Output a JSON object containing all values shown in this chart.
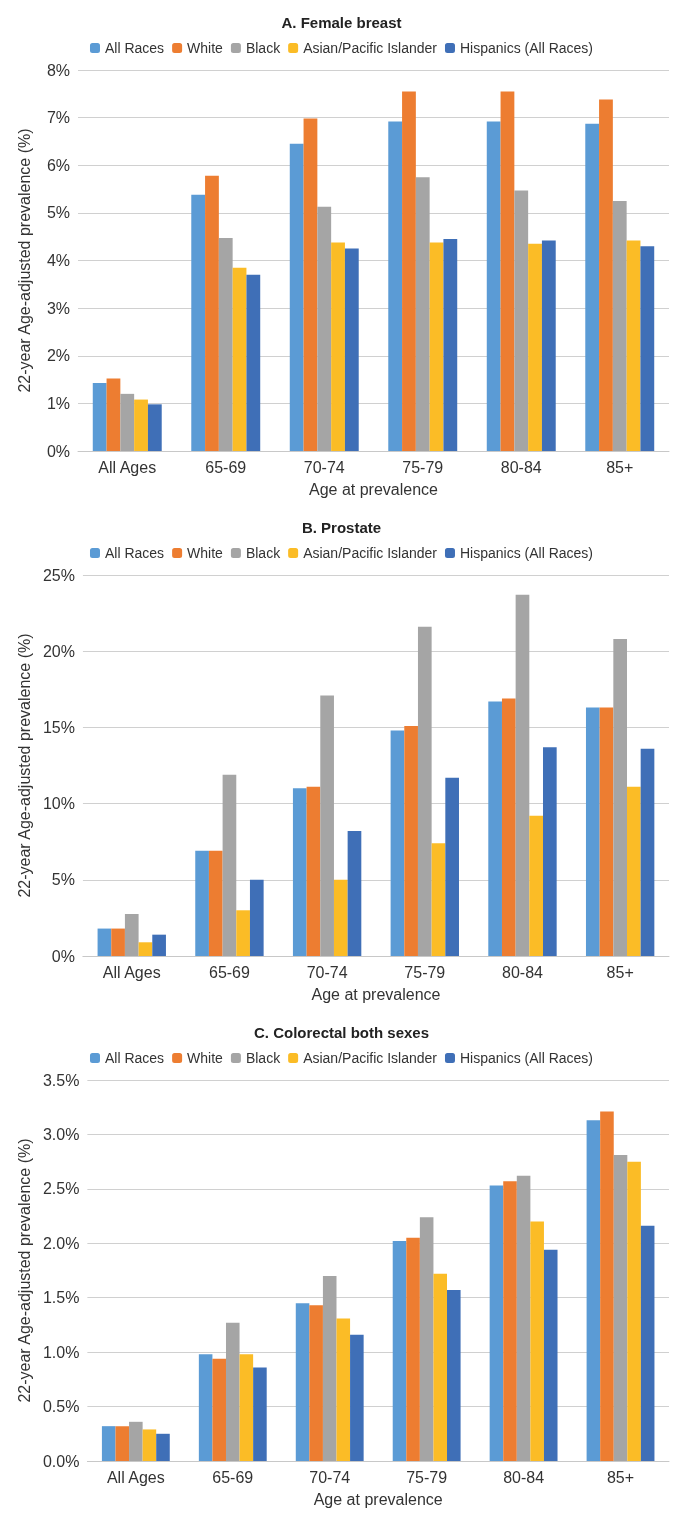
{
  "chart_data": [
    {
      "type": "bar",
      "title": "A. Female breast",
      "xlabel": "Age at prevalence",
      "ylabel": "22-year Age-adjusted prevalence (%)",
      "categories": [
        "All Ages",
        "65-69",
        "70-74",
        "75-79",
        "80-84",
        "85+"
      ],
      "series": [
        {
          "name": "All Races",
          "color": "#5b9bd5",
          "values": [
            1.43,
            5.38,
            6.45,
            6.92,
            6.92,
            6.87
          ]
        },
        {
          "name": "White",
          "color": "#ed7d31",
          "values": [
            1.52,
            5.78,
            6.98,
            7.55,
            7.55,
            7.38
          ]
        },
        {
          "name": "Black",
          "color": "#a5a5a5",
          "values": [
            1.2,
            4.47,
            5.13,
            5.75,
            5.47,
            5.25
          ]
        },
        {
          "name": "Asian/Pacific Islander",
          "color": "#fbbc26",
          "values": [
            1.08,
            3.85,
            4.38,
            4.38,
            4.35,
            4.42
          ]
        },
        {
          "name": "Hispanics (All Races)",
          "color": "#3f6fb7",
          "values": [
            0.98,
            3.7,
            4.25,
            4.45,
            4.42,
            4.3
          ]
        }
      ],
      "ylim": [
        0,
        8
      ],
      "yticks": [
        {
          "value": 0,
          "label": "0%"
        },
        {
          "value": 1,
          "label": "1%"
        },
        {
          "value": 2,
          "label": "2%"
        },
        {
          "value": 3,
          "label": "3%"
        },
        {
          "value": 4,
          "label": "4%"
        },
        {
          "value": 5,
          "label": "5%"
        },
        {
          "value": 6,
          "label": "6%"
        },
        {
          "value": 7,
          "label": "7%"
        },
        {
          "value": 8,
          "label": "8%"
        }
      ],
      "grid": "y",
      "legend": "top"
    },
    {
      "type": "bar",
      "title": "B. Prostate",
      "xlabel": "Age at prevalence",
      "ylabel": "22-year Age-adjusted prevalence (%)",
      "categories": [
        "All Ages",
        "65-69",
        "70-74",
        "75-79",
        "80-84",
        "85+"
      ],
      "series": [
        {
          "name": "All Races",
          "color": "#5b9bd5",
          "values": [
            1.8,
            6.9,
            11.0,
            14.8,
            16.7,
            16.3
          ]
        },
        {
          "name": "White",
          "color": "#ed7d31",
          "values": [
            1.8,
            6.9,
            11.1,
            15.1,
            16.9,
            16.3
          ]
        },
        {
          "name": "Black",
          "color": "#a5a5a5",
          "values": [
            2.75,
            11.9,
            17.1,
            21.6,
            23.7,
            20.8
          ]
        },
        {
          "name": "Asian/Pacific Islander",
          "color": "#fbbc26",
          "values": [
            0.9,
            3.0,
            5.0,
            7.4,
            9.2,
            11.1
          ]
        },
        {
          "name": "Hispanics (All Races)",
          "color": "#3f6fb7",
          "values": [
            1.4,
            5.0,
            8.2,
            11.7,
            13.7,
            13.6
          ]
        }
      ],
      "ylim": [
        0,
        25
      ],
      "yticks": [
        {
          "value": 0,
          "label": "0%"
        },
        {
          "value": 5,
          "label": "5%"
        },
        {
          "value": 10,
          "label": "10%"
        },
        {
          "value": 15,
          "label": "15%"
        },
        {
          "value": 20,
          "label": "20%"
        },
        {
          "value": 25,
          "label": "25%"
        }
      ],
      "grid": "y",
      "legend": "top"
    },
    {
      "type": "bar",
      "title": "C. Colorectal both sexes",
      "xlabel": "Age at prevalence",
      "ylabel": "22-year Age-adjusted prevalence (%)",
      "categories": [
        "All Ages",
        "65-69",
        "70-74",
        "75-79",
        "80-84",
        "85+"
      ],
      "series": [
        {
          "name": "All Races",
          "color": "#5b9bd5",
          "values": [
            0.32,
            0.98,
            1.45,
            2.02,
            2.53,
            3.13
          ]
        },
        {
          "name": "White",
          "color": "#ed7d31",
          "values": [
            0.32,
            0.94,
            1.43,
            2.05,
            2.57,
            3.21
          ]
        },
        {
          "name": "Black",
          "color": "#a5a5a5",
          "values": [
            0.36,
            1.27,
            1.7,
            2.24,
            2.62,
            2.81
          ]
        },
        {
          "name": "Asian/Pacific Islander",
          "color": "#fbbc26",
          "values": [
            0.29,
            0.98,
            1.31,
            1.72,
            2.2,
            2.75
          ]
        },
        {
          "name": "Hispanics (All Races)",
          "color": "#3f6fb7",
          "values": [
            0.25,
            0.86,
            1.16,
            1.57,
            1.94,
            2.16
          ]
        }
      ],
      "ylim": [
        0,
        3.5
      ],
      "yticks": [
        {
          "value": 0,
          "label": "0.0%"
        },
        {
          "value": 0.5,
          "label": "0.5%"
        },
        {
          "value": 1,
          "label": "1.0%"
        },
        {
          "value": 1.5,
          "label": "1.5%"
        },
        {
          "value": 2,
          "label": "2.0%"
        },
        {
          "value": 2.5,
          "label": "2.5%"
        },
        {
          "value": 3,
          "label": "3.0%"
        },
        {
          "value": 3.5,
          "label": "3.5%"
        }
      ],
      "grid": "y",
      "legend": "top"
    }
  ]
}
